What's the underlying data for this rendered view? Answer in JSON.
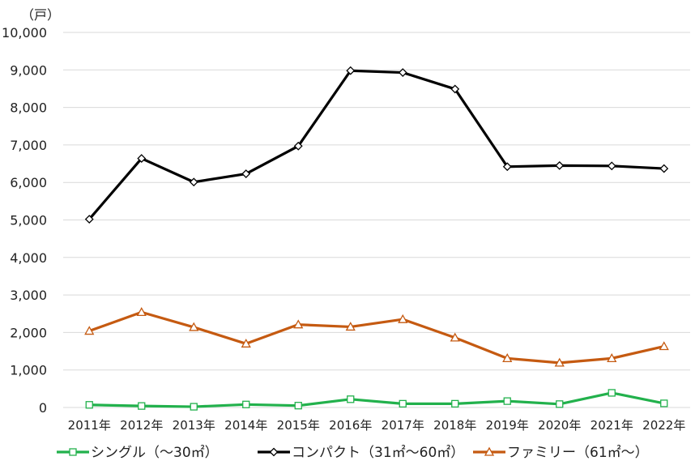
{
  "chart_data": {
    "type": "line",
    "unit_label": "（戸）",
    "categories": [
      "2011年",
      "2012年",
      "2013年",
      "2014年",
      "2015年",
      "2016年",
      "2017年",
      "2018年",
      "2019年",
      "2020年",
      "2021年",
      "2022年"
    ],
    "ylim": [
      0,
      10000
    ],
    "yticks": [
      0,
      1000,
      2000,
      3000,
      4000,
      5000,
      6000,
      7000,
      8000,
      9000,
      10000
    ],
    "ytick_labels": [
      "0",
      "1,000",
      "2,000",
      "3,000",
      "4,000",
      "5,000",
      "6,000",
      "7,000",
      "8,000",
      "9,000",
      "10,000"
    ],
    "grid": true,
    "legend_position": "bottom",
    "series": [
      {
        "name": "シングル（～30㎡）",
        "color": "#22b14c",
        "marker": "square",
        "values": [
          70,
          40,
          20,
          80,
          50,
          220,
          100,
          100,
          170,
          90,
          390,
          110
        ]
      },
      {
        "name": "コンパクト（31㎡～60㎡）",
        "color": "#000000",
        "marker": "diamond",
        "values": [
          5020,
          6640,
          6010,
          6230,
          6970,
          8980,
          8930,
          8490,
          6420,
          6450,
          6440,
          6370
        ]
      },
      {
        "name": "ファミリー（61㎡～）",
        "color": "#c55a11",
        "marker": "triangle",
        "values": [
          2040,
          2540,
          2140,
          1700,
          2210,
          2150,
          2350,
          1860,
          1310,
          1190,
          1310,
          1630
        ]
      }
    ]
  }
}
